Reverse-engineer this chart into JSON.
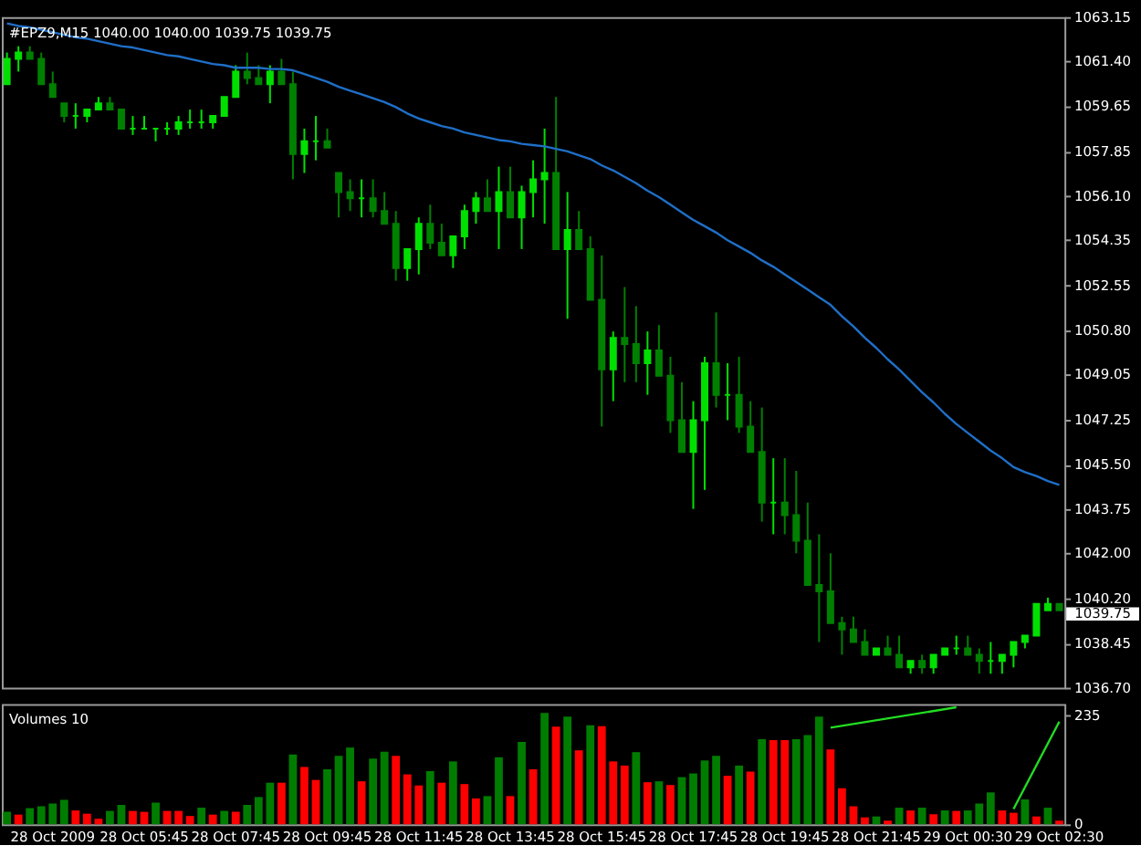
{
  "chart_data": [
    {
      "type": "candlestick",
      "title": "#EPZ9,M15  1040.00 1040.00 1039.75 1039.75",
      "colors": [
        "#00e000",
        "#00e000",
        "#008000",
        "#008000",
        "#008000",
        "#008000",
        "#00e000",
        "#00e000",
        "#00e000",
        "#008000",
        "#008000",
        "#00e000",
        "#00e000",
        "#00e000",
        "#00e000",
        "#00e000",
        "#00e000",
        "#00e000",
        "#00e000",
        "#00e000",
        "#00e000",
        "#008000",
        "#008000",
        "#00e000",
        "#008000",
        "#008000",
        "#00e000",
        "#00e000",
        "#008000",
        "#008000",
        "#008000",
        "#00e000",
        "#008000",
        "#008000",
        "#008000",
        "#00e000",
        "#00e000",
        "#008000",
        "#008000",
        "#00e000",
        "#00e000",
        "#00e000",
        "#008000",
        "#00e000",
        "#008000",
        "#00e000",
        "#00e000",
        "#00e000",
        "#008000",
        "#00e000",
        "#008000",
        "#008000",
        "#008000",
        "#00e000",
        "#008000",
        "#008000",
        "#00e000",
        "#008000",
        "#008000",
        "#008000",
        "#00e000",
        "#00e000",
        "#008000",
        "#00e000",
        "#008000",
        "#008000",
        "#008000",
        "#00e000",
        "#008000",
        "#008000",
        "#008000",
        "#008000",
        "#008000",
        "#008000",
        "#008000",
        "#008000",
        "#00e000",
        "#008000",
        "#008000",
        "#00e000",
        "#008000",
        "#00e000",
        "#00e000",
        "#00e000",
        "#008000",
        "#008000",
        "#00e000",
        "#00e000",
        "#00e000",
        "#00e000",
        "#00e000",
        "#00e000",
        "#008000"
      ],
      "categories": [
        null,
        null,
        null,
        null,
        null,
        null,
        null,
        null,
        null,
        null,
        null,
        null,
        null,
        null,
        null,
        null,
        null,
        null,
        null,
        null,
        null,
        null,
        null,
        null,
        null,
        null,
        null,
        null,
        null,
        null,
        null,
        null,
        null,
        null,
        null,
        null,
        null,
        null,
        null,
        null,
        null,
        null,
        null,
        null,
        null,
        null,
        null,
        null,
        null,
        null,
        null,
        null,
        null,
        null,
        null,
        null,
        null,
        null,
        null,
        null,
        null,
        null,
        null,
        null,
        null,
        null,
        null,
        null,
        null,
        null,
        null,
        null,
        null,
        null,
        null,
        null,
        null,
        null,
        null,
        null,
        null,
        null,
        null,
        null,
        null,
        null,
        null,
        null,
        null,
        null,
        null,
        null,
        null
      ],
      "ohlc": [
        [
          1060.5,
          1061.75,
          1060.5,
          1061.5
        ],
        [
          1061.5,
          1062.0,
          1061.0,
          1061.75
        ],
        [
          1061.75,
          1062.0,
          1061.5,
          1061.5
        ],
        [
          1061.5,
          1061.75,
          1060.5,
          1060.5
        ],
        [
          1060.5,
          1061.0,
          1060.0,
          1060.0
        ],
        [
          1059.75,
          1059.75,
          1059.0,
          1059.25
        ],
        [
          1059.25,
          1059.75,
          1058.75,
          1059.25
        ],
        [
          1059.25,
          1059.5,
          1059.0,
          1059.5
        ],
        [
          1059.5,
          1060.0,
          1059.5,
          1059.75
        ],
        [
          1059.75,
          1060.0,
          1059.5,
          1059.5
        ],
        [
          1059.5,
          1059.5,
          1058.75,
          1058.75
        ],
        [
          1058.75,
          1059.25,
          1058.5,
          1058.75
        ],
        [
          1058.75,
          1059.25,
          1058.75,
          1058.75
        ],
        [
          1058.75,
          1058.75,
          1058.25,
          1058.75
        ],
        [
          1058.75,
          1059.0,
          1058.5,
          1058.75
        ],
        [
          1058.75,
          1059.25,
          1058.5,
          1059.0
        ],
        [
          1059.0,
          1059.5,
          1058.75,
          1059.0
        ],
        [
          1059.0,
          1059.5,
          1058.75,
          1059.0
        ],
        [
          1059.0,
          1059.25,
          1058.75,
          1059.25
        ],
        [
          1059.25,
          1060.0,
          1059.25,
          1060.0
        ],
        [
          1060.0,
          1061.25,
          1060.0,
          1061.0
        ],
        [
          1061.0,
          1061.75,
          1060.5,
          1060.75
        ],
        [
          1060.75,
          1061.25,
          1060.5,
          1060.5
        ],
        [
          1060.5,
          1061.25,
          1059.75,
          1061.0
        ],
        [
          1061.0,
          1061.5,
          1060.5,
          1060.5
        ],
        [
          1060.5,
          1061.0,
          1056.75,
          1057.75
        ],
        [
          1057.75,
          1058.75,
          1057.0,
          1058.25
        ],
        [
          1058.25,
          1059.25,
          1057.5,
          1058.25
        ],
        [
          1058.25,
          1058.75,
          1058.0,
          1058.0
        ],
        [
          1057.0,
          1057.0,
          1055.25,
          1056.25
        ],
        [
          1056.25,
          1056.75,
          1055.5,
          1056.0
        ],
        [
          1056.0,
          1056.75,
          1055.25,
          1056.0
        ],
        [
          1056.0,
          1056.75,
          1055.25,
          1055.5
        ],
        [
          1055.5,
          1056.25,
          1055.0,
          1055.0
        ],
        [
          1055.0,
          1055.5,
          1052.75,
          1053.25
        ],
        [
          1053.25,
          1054.0,
          1052.75,
          1054.0
        ],
        [
          1054.0,
          1055.25,
          1053.0,
          1055.0
        ],
        [
          1055.0,
          1055.75,
          1054.0,
          1054.25
        ],
        [
          1054.25,
          1055.0,
          1053.75,
          1053.75
        ],
        [
          1053.75,
          1054.5,
          1053.25,
          1054.5
        ],
        [
          1054.5,
          1055.75,
          1054.0,
          1055.5
        ],
        [
          1055.5,
          1056.25,
          1055.0,
          1056.0
        ],
        [
          1056.0,
          1056.75,
          1055.5,
          1055.5
        ],
        [
          1055.5,
          1057.25,
          1054.0,
          1056.25
        ],
        [
          1056.25,
          1057.25,
          1055.25,
          1055.25
        ],
        [
          1055.25,
          1056.5,
          1054.0,
          1056.25
        ],
        [
          1056.25,
          1057.5,
          1055.25,
          1056.75
        ],
        [
          1056.75,
          1058.75,
          1055.0,
          1057.0
        ],
        [
          1057.0,
          1060.0,
          1054.0,
          1054.0
        ],
        [
          1054.0,
          1056.25,
          1051.25,
          1054.75
        ],
        [
          1054.75,
          1055.5,
          1054.0,
          1054.0
        ],
        [
          1054.0,
          1054.5,
          1052.0,
          1052.0
        ],
        [
          1052.0,
          1053.75,
          1047.0,
          1049.25
        ],
        [
          1049.25,
          1050.75,
          1048.0,
          1050.5
        ],
        [
          1050.5,
          1052.5,
          1048.75,
          1050.25
        ],
        [
          1050.25,
          1051.75,
          1048.75,
          1049.5
        ],
        [
          1049.5,
          1050.75,
          1048.25,
          1050.0
        ],
        [
          1050.0,
          1051.0,
          1049.0,
          1049.0
        ],
        [
          1049.0,
          1049.75,
          1046.75,
          1047.25
        ],
        [
          1047.25,
          1048.75,
          1046.0,
          1046.0
        ],
        [
          1046.0,
          1048.0,
          1043.75,
          1047.25
        ],
        [
          1047.25,
          1049.75,
          1044.5,
          1049.5
        ],
        [
          1049.5,
          1051.5,
          1047.75,
          1048.25
        ],
        [
          1048.25,
          1049.5,
          1047.25,
          1048.25
        ],
        [
          1048.25,
          1049.75,
          1046.75,
          1047.0
        ],
        [
          1047.0,
          1048.0,
          1046.0,
          1046.0
        ],
        [
          1046.0,
          1047.75,
          1043.25,
          1044.0
        ],
        [
          1044.0,
          1045.75,
          1042.75,
          1044.0
        ],
        [
          1044.0,
          1045.75,
          1042.75,
          1043.5
        ],
        [
          1043.5,
          1045.25,
          1042.0,
          1042.5
        ],
        [
          1042.5,
          1044.0,
          1040.75,
          1040.75
        ],
        [
          1040.75,
          1042.75,
          1038.5,
          1040.5
        ],
        [
          1040.5,
          1042.0,
          1039.25,
          1039.25
        ],
        [
          1039.25,
          1039.5,
          1038.0,
          1039.0
        ],
        [
          1039.0,
          1039.5,
          1038.5,
          1038.5
        ],
        [
          1038.5,
          1039.0,
          1038.0,
          1038.0
        ],
        [
          1038.0,
          1038.25,
          1038.0,
          1038.25
        ],
        [
          1038.25,
          1038.75,
          1038.0,
          1038.0
        ],
        [
          1038.0,
          1038.75,
          1037.5,
          1037.5
        ],
        [
          1037.5,
          1037.75,
          1037.25,
          1037.75
        ],
        [
          1037.75,
          1038.0,
          1037.25,
          1037.5
        ],
        [
          1037.5,
          1038.0,
          1037.25,
          1038.0
        ],
        [
          1038.0,
          1038.25,
          1038.0,
          1038.25
        ],
        [
          1038.25,
          1038.75,
          1038.0,
          1038.25
        ],
        [
          1038.25,
          1038.75,
          1038.0,
          1038.0
        ],
        [
          1038.0,
          1038.25,
          1037.25,
          1037.75
        ],
        [
          1037.75,
          1038.5,
          1037.25,
          1037.75
        ],
        [
          1037.75,
          1038.0,
          1037.25,
          1038.0
        ],
        [
          1038.0,
          1038.5,
          1037.5,
          1038.5
        ],
        [
          1038.5,
          1038.75,
          1038.25,
          1038.75
        ],
        [
          1038.75,
          1040.0,
          1038.75,
          1040.0
        ],
        [
          1039.75,
          1040.25,
          1039.75,
          1040.0
        ],
        [
          1040.0,
          1040.0,
          1039.75,
          1039.75
        ]
      ],
      "series": [
        {
          "type": "line",
          "color": "#1f6fc8",
          "values": [
            1062.9,
            1062.8,
            1062.75,
            1062.65,
            1062.55,
            1062.45,
            1062.35,
            1062.3,
            1062.2,
            1062.1,
            1062.0,
            1061.95,
            1061.85,
            1061.75,
            1061.65,
            1061.6,
            1061.5,
            1061.4,
            1061.3,
            1061.25,
            1061.15,
            1061.15,
            1061.15,
            1061.1,
            1061.1,
            1061.05,
            1060.9,
            1060.75,
            1060.6,
            1060.4,
            1060.25,
            1060.1,
            1059.95,
            1059.8,
            1059.6,
            1059.35,
            1059.15,
            1059.0,
            1058.85,
            1058.75,
            1058.6,
            1058.5,
            1058.4,
            1058.3,
            1058.25,
            1058.15,
            1058.1,
            1058.05,
            1057.95,
            1057.85,
            1057.7,
            1057.55,
            1057.3,
            1057.1,
            1056.85,
            1056.6,
            1056.3,
            1056.05,
            1055.75,
            1055.45,
            1055.15,
            1054.9,
            1054.65,
            1054.35,
            1054.1,
            1053.85,
            1053.55,
            1053.3,
            1053.0,
            1052.7,
            1052.4,
            1052.1,
            1051.8,
            1051.35,
            1050.95,
            1050.5,
            1050.1,
            1049.65,
            1049.25,
            1048.8,
            1048.35,
            1047.95,
            1047.5,
            1047.1,
            1046.75,
            1046.4,
            1046.05,
            1045.75,
            1045.4,
            1045.2,
            1045.05,
            1044.85,
            1044.7
          ]
        }
      ],
      "ylim": [
        1036.7,
        1063.15
      ],
      "yticks": [
        {
          "value": 1036.7,
          "label": "1036.70"
        },
        1038.45,
        {
          "value": 1040.2,
          "label": "1040.20"
        },
        {
          "value": 1042,
          "label": "1042.00"
        },
        1043.75,
        {
          "value": 1045.5,
          "label": "1045.50"
        },
        1047.25,
        1049.05,
        {
          "value": 1050.8,
          "label": "1050.80"
        },
        1052.55,
        1054.35,
        {
          "value": 1056.1,
          "label": "1056.10"
        },
        1057.85,
        1059.65,
        {
          "value": 1061.4,
          "label": "1061.40"
        },
        1063.15
      ],
      "tick_labels": "y",
      "annotations": [
        "1039.75"
      ]
    },
    {
      "type": "bar",
      "title": "Volumes 10",
      "categories": [
        null,
        null,
        null,
        null,
        "28 Oct 2009",
        null,
        null,
        null,
        null,
        null,
        null,
        null,
        "28 Oct 05:45",
        null,
        null,
        null,
        null,
        null,
        null,
        null,
        "28 Oct 07:45",
        null,
        null,
        null,
        null,
        null,
        null,
        null,
        "28 Oct 09:45",
        null,
        null,
        null,
        null,
        null,
        null,
        null,
        "28 Oct 11:45",
        null,
        null,
        null,
        null,
        null,
        null,
        null,
        "28 Oct 13:45",
        null,
        null,
        null,
        null,
        null,
        null,
        null,
        "28 Oct 15:45",
        null,
        null,
        null,
        null,
        null,
        null,
        null,
        "28 Oct 17:45",
        null,
        null,
        null,
        null,
        null,
        null,
        null,
        "28 Oct 19:45",
        null,
        null,
        null,
        null,
        null,
        null,
        null,
        "28 Oct 21:45",
        null,
        null,
        null,
        null,
        null,
        null,
        null,
        "29 Oct 00:30",
        null,
        null,
        null,
        null,
        null,
        null,
        null,
        "29 Oct 02:30"
      ],
      "series": [
        {
          "type": "bar",
          "values": [
            27,
            21,
            35,
            39,
            45,
            53,
            30,
            23,
            12,
            29,
            42,
            29,
            27,
            47,
            29,
            29,
            18,
            36,
            21,
            29,
            27,
            42,
            59,
            90,
            90,
            151,
            124,
            96,
            119,
            148,
            166,
            93,
            142,
            157,
            148,
            108,
            84,
            115,
            90,
            136,
            87,
            56,
            61,
            145,
            61,
            178,
            119,
            241,
            211,
            233,
            160,
            214,
            212,
            136,
            127,
            156,
            91,
            93,
            85,
            102,
            110,
            138,
            148,
            105,
            127,
            114,
            184,
            182,
            182,
            184,
            193,
            233,
            162,
            78,
            39,
            15,
            17,
            8,
            36,
            30,
            36,
            22,
            30,
            29,
            30,
            45,
            69,
            30,
            25,
            54,
            17,
            36,
            8
          ],
          "colors": [
            "#007d00",
            "#ff0000",
            "#007d00",
            "#007d00",
            "#007d00",
            "#007d00",
            "#ff0000",
            "#ff0000",
            "#ff0000",
            "#007d00",
            "#007d00",
            "#ff0000",
            "#ff0000",
            "#007d00",
            "#ff0000",
            "#ff0000",
            "#ff0000",
            "#007d00",
            "#ff0000",
            "#007d00",
            "#ff0000",
            "#007d00",
            "#007d00",
            "#007d00",
            "#ff0000",
            "#007d00",
            "#ff0000",
            "#ff0000",
            "#007d00",
            "#007d00",
            "#007d00",
            "#ff0000",
            "#007d00",
            "#007d00",
            "#ff0000",
            "#ff0000",
            "#ff0000",
            "#007d00",
            "#ff0000",
            "#007d00",
            "#ff0000",
            "#ff0000",
            "#007d00",
            "#007d00",
            "#ff0000",
            "#007d00",
            "#ff0000",
            "#007d00",
            "#ff0000",
            "#007d00",
            "#ff0000",
            "#007d00",
            "#ff0000",
            "#ff0000",
            "#ff0000",
            "#007d00",
            "#ff0000",
            "#007d00",
            "#ff0000",
            "#007d00",
            "#007d00",
            "#007d00",
            "#007d00",
            "#ff0000",
            "#007d00",
            "#ff0000",
            "#007d00",
            "#ff0000",
            "#ff0000",
            "#007d00",
            "#007d00",
            "#007d00",
            "#ff0000",
            "#ff0000",
            "#ff0000",
            "#ff0000",
            "#007d00",
            "#ff0000",
            "#007d00",
            "#ff0000",
            "#007d00",
            "#ff0000",
            "#007d00",
            "#ff0000",
            "#007d00",
            "#007d00",
            "#007d00",
            "#ff0000",
            "#ff0000",
            "#007d00",
            "#ff0000",
            "#007d00",
            "#ff0000"
          ]
        },
        {
          "type": "line",
          "color": "#22dd22",
          "values": [
            null,
            null,
            null,
            null,
            null,
            null,
            null,
            null,
            null,
            null,
            null,
            null,
            null,
            null,
            null,
            null,
            null,
            null,
            null,
            null,
            null,
            null,
            null,
            null,
            null,
            null,
            null,
            null,
            null,
            null,
            null,
            null,
            null,
            null,
            null,
            null,
            null,
            null,
            null,
            null,
            null,
            null,
            null,
            null,
            null,
            null,
            null,
            null,
            null,
            null,
            null,
            null,
            null,
            null,
            null,
            null,
            null,
            null,
            null,
            null,
            null,
            null,
            null,
            null,
            null,
            null,
            null,
            null,
            null,
            null,
            null,
            null,
            209,
            null,
            null,
            null,
            null,
            null,
            null,
            null,
            null,
            null,
            null,
            253,
            null,
            null,
            null,
            null,
            null,
            null,
            null,
            null,
            null
          ]
        },
        {
          "type": "line",
          "color": "#22dd22",
          "values": [
            null,
            null,
            null,
            null,
            null,
            null,
            null,
            null,
            null,
            null,
            null,
            null,
            null,
            null,
            null,
            null,
            null,
            null,
            null,
            null,
            null,
            null,
            null,
            null,
            null,
            null,
            null,
            null,
            null,
            null,
            null,
            null,
            null,
            null,
            null,
            null,
            null,
            null,
            null,
            null,
            null,
            null,
            null,
            null,
            null,
            null,
            null,
            null,
            null,
            null,
            null,
            null,
            null,
            null,
            null,
            null,
            null,
            null,
            null,
            null,
            null,
            null,
            null,
            null,
            null,
            null,
            null,
            null,
            null,
            null,
            null,
            null,
            null,
            null,
            null,
            null,
            null,
            null,
            null,
            null,
            null,
            null,
            null,
            null,
            null,
            null,
            null,
            null,
            33,
            null,
            null,
            null,
            222
          ]
        }
      ],
      "ylim": [
        0,
        260
      ],
      "yticks": [
        0,
        235
      ]
    }
  ]
}
